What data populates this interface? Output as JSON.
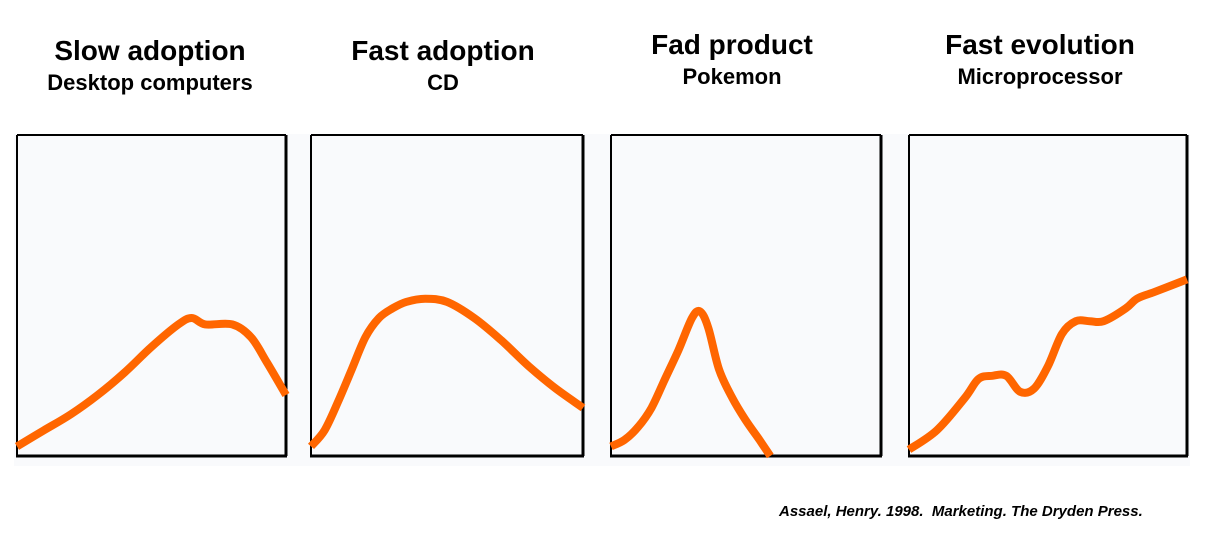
{
  "panels": [
    {
      "title": "Slow adoption",
      "subtitle": "Desktop computers"
    },
    {
      "title": "Fast adoption",
      "subtitle": "CD"
    },
    {
      "title": "Fad product",
      "subtitle": "Pokemon"
    },
    {
      "title": "Fast evolution",
      "subtitle": "Microprocessor"
    }
  ],
  "citation": "Assael, Henry. 1998.  Marketing. The Dryden Press.",
  "colors": {
    "curve": "#ff6600",
    "frame": "#000000",
    "panel_background": "#f9fafc"
  },
  "chart_data": [
    {
      "type": "line",
      "title": "Slow adoption",
      "subtitle": "Desktop computers",
      "xlim": [
        0,
        1
      ],
      "ylim": [
        0,
        1
      ],
      "series": [
        {
          "x": [
            0,
            0.1,
            0.2,
            0.3,
            0.4,
            0.5,
            0.6,
            0.65,
            0.7,
            0.8,
            0.87,
            0.93,
            1.0
          ],
          "y": [
            0.03,
            0.08,
            0.13,
            0.19,
            0.26,
            0.34,
            0.41,
            0.43,
            0.41,
            0.41,
            0.37,
            0.29,
            0.19
          ]
        }
      ]
    },
    {
      "type": "line",
      "title": "Fast adoption",
      "subtitle": "CD",
      "xlim": [
        0,
        1
      ],
      "ylim": [
        0,
        1
      ],
      "series": [
        {
          "x": [
            0,
            0.05,
            0.1,
            0.15,
            0.2,
            0.25,
            0.3,
            0.35,
            0.42,
            0.5,
            0.6,
            0.7,
            0.8,
            0.9,
            1.0
          ],
          "y": [
            0.03,
            0.08,
            0.17,
            0.27,
            0.37,
            0.43,
            0.46,
            0.48,
            0.49,
            0.48,
            0.43,
            0.36,
            0.28,
            0.21,
            0.15
          ]
        }
      ]
    },
    {
      "type": "line",
      "title": "Fad product",
      "subtitle": "Pokemon",
      "xlim": [
        0,
        1
      ],
      "ylim": [
        0,
        1
      ],
      "series": [
        {
          "x": [
            0,
            0.05,
            0.1,
            0.15,
            0.2,
            0.25,
            0.3,
            0.33,
            0.36,
            0.4,
            0.45,
            0.5,
            0.55,
            0.59
          ],
          "y": [
            0.03,
            0.05,
            0.09,
            0.15,
            0.24,
            0.33,
            0.43,
            0.45,
            0.4,
            0.27,
            0.18,
            0.11,
            0.05,
            0.0
          ]
        }
      ]
    },
    {
      "type": "line",
      "title": "Fast evolution",
      "subtitle": "Microprocessor",
      "xlim": [
        0,
        1
      ],
      "ylim": [
        0,
        1
      ],
      "series": [
        {
          "x": [
            0,
            0.1,
            0.2,
            0.25,
            0.3,
            0.35,
            0.4,
            0.45,
            0.5,
            0.55,
            0.6,
            0.65,
            0.7,
            0.78,
            0.82,
            0.88,
            0.94,
            1.0
          ],
          "y": [
            0.02,
            0.08,
            0.18,
            0.24,
            0.25,
            0.25,
            0.2,
            0.21,
            0.28,
            0.38,
            0.42,
            0.42,
            0.42,
            0.46,
            0.49,
            0.51,
            0.53,
            0.55
          ]
        }
      ]
    }
  ]
}
